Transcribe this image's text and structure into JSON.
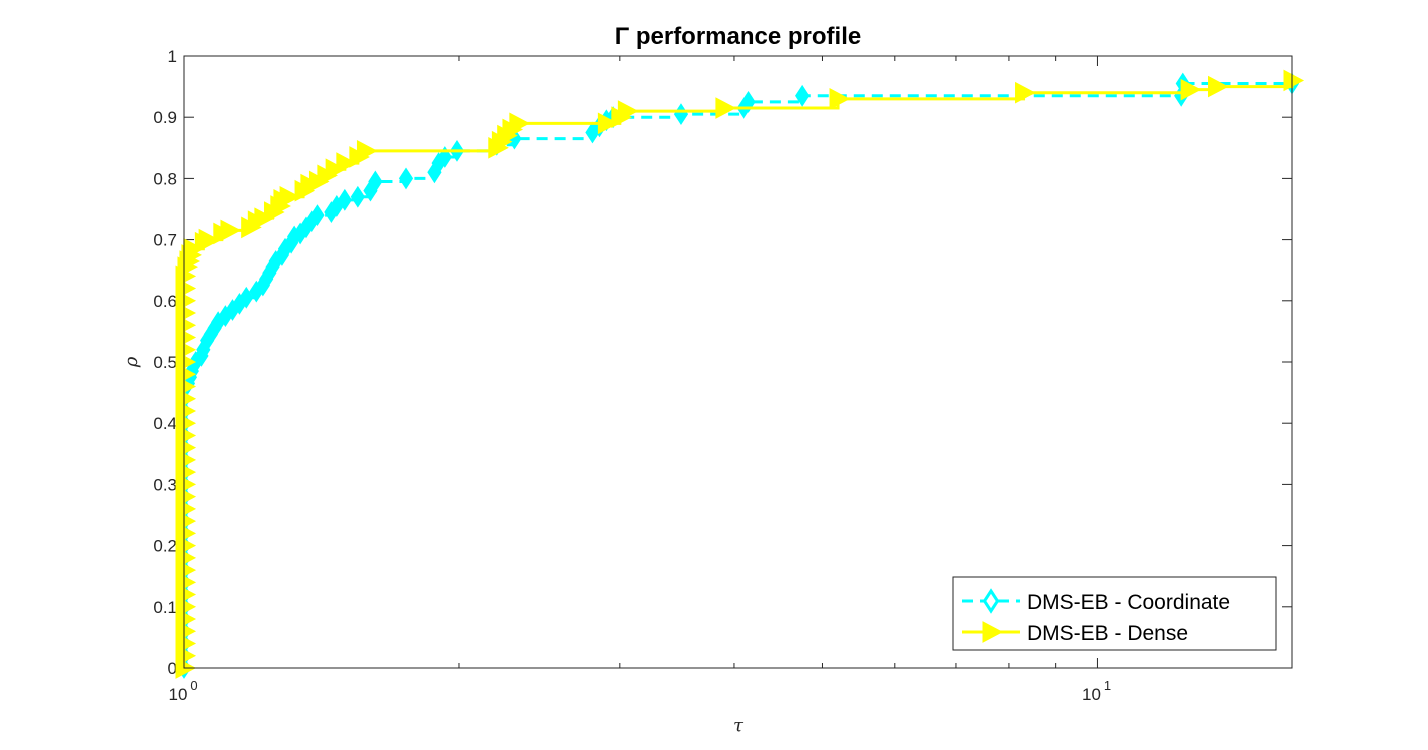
{
  "chart_data": {
    "type": "line",
    "title": "Γ performance profile",
    "xlabel": "τ",
    "ylabel": "ρ",
    "x_scale": "log",
    "xlim": [
      1,
      16.33
    ],
    "ylim": [
      0,
      1
    ],
    "x_ticks": [
      {
        "value": 1,
        "base": "10",
        "exp": "0"
      },
      {
        "value": 10,
        "base": "10",
        "exp": "1"
      }
    ],
    "y_ticks": [
      {
        "value": 0,
        "label": "0"
      },
      {
        "value": 0.1,
        "label": "0.1"
      },
      {
        "value": 0.2,
        "label": "0.2"
      },
      {
        "value": 0.3,
        "label": "0.3"
      },
      {
        "value": 0.4,
        "label": "0.4"
      },
      {
        "value": 0.5,
        "label": "0.5"
      },
      {
        "value": 0.6,
        "label": "0.6"
      },
      {
        "value": 0.7,
        "label": "0.7"
      },
      {
        "value": 0.8,
        "label": "0.8"
      },
      {
        "value": 0.9,
        "label": "0.9"
      },
      {
        "value": 1,
        "label": "1"
      }
    ],
    "grid": false,
    "legend_position": "bottom-right",
    "series": [
      {
        "name": "DMS-EB - Coordinate",
        "color": "#00ffff",
        "line_style": "dashed",
        "marker": "diamond",
        "points": [
          [
            1.0,
            0.0
          ],
          [
            1.0,
            0.02
          ],
          [
            1.0,
            0.04
          ],
          [
            1.0,
            0.06
          ],
          [
            1.0,
            0.08
          ],
          [
            1.0,
            0.1
          ],
          [
            1.0,
            0.12
          ],
          [
            1.0,
            0.14
          ],
          [
            1.0,
            0.16
          ],
          [
            1.0,
            0.18
          ],
          [
            1.0,
            0.2
          ],
          [
            1.0,
            0.22
          ],
          [
            1.0,
            0.24
          ],
          [
            1.0,
            0.26
          ],
          [
            1.0,
            0.28
          ],
          [
            1.0,
            0.3
          ],
          [
            1.0,
            0.32
          ],
          [
            1.0,
            0.34
          ],
          [
            1.0,
            0.36
          ],
          [
            1.0,
            0.38
          ],
          [
            1.0,
            0.4
          ],
          [
            1.0,
            0.42
          ],
          [
            1.0,
            0.44
          ],
          [
            1.0,
            0.46
          ],
          [
            1.01,
            0.465
          ],
          [
            1.015,
            0.475
          ],
          [
            1.02,
            0.485
          ],
          [
            1.025,
            0.495
          ],
          [
            1.03,
            0.5
          ],
          [
            1.045,
            0.51
          ],
          [
            1.05,
            0.52
          ],
          [
            1.06,
            0.535
          ],
          [
            1.07,
            0.545
          ],
          [
            1.08,
            0.555
          ],
          [
            1.09,
            0.565
          ],
          [
            1.11,
            0.575
          ],
          [
            1.13,
            0.585
          ],
          [
            1.15,
            0.595
          ],
          [
            1.17,
            0.605
          ],
          [
            1.2,
            0.615
          ],
          [
            1.22,
            0.625
          ],
          [
            1.23,
            0.635
          ],
          [
            1.24,
            0.645
          ],
          [
            1.25,
            0.655
          ],
          [
            1.26,
            0.665
          ],
          [
            1.28,
            0.675
          ],
          [
            1.29,
            0.685
          ],
          [
            1.31,
            0.695
          ],
          [
            1.32,
            0.705
          ],
          [
            1.34,
            0.71
          ],
          [
            1.36,
            0.72
          ],
          [
            1.38,
            0.73
          ],
          [
            1.4,
            0.74
          ],
          [
            1.45,
            0.745
          ],
          [
            1.47,
            0.755
          ],
          [
            1.5,
            0.765
          ],
          [
            1.55,
            0.77
          ],
          [
            1.6,
            0.78
          ],
          [
            1.62,
            0.795
          ],
          [
            1.75,
            0.8
          ],
          [
            1.88,
            0.81
          ],
          [
            1.9,
            0.825
          ],
          [
            1.93,
            0.835
          ],
          [
            1.99,
            0.845
          ],
          [
            2.2,
            0.855
          ],
          [
            2.3,
            0.865
          ],
          [
            2.8,
            0.875
          ],
          [
            2.85,
            0.885
          ],
          [
            2.9,
            0.895
          ],
          [
            2.95,
            0.9
          ],
          [
            3.5,
            0.905
          ],
          [
            4.1,
            0.915
          ],
          [
            4.15,
            0.925
          ],
          [
            4.75,
            0.935
          ],
          [
            12.35,
            0.935
          ],
          [
            12.4,
            0.955
          ],
          [
            16.33,
            0.955
          ]
        ]
      },
      {
        "name": "DMS-EB - Dense",
        "color": "#ffff00",
        "line_style": "solid",
        "marker": "triangle-right",
        "points": [
          [
            1.0,
            0.0
          ],
          [
            1.0,
            0.02
          ],
          [
            1.0,
            0.04
          ],
          [
            1.0,
            0.06
          ],
          [
            1.0,
            0.08
          ],
          [
            1.0,
            0.1
          ],
          [
            1.0,
            0.12
          ],
          [
            1.0,
            0.14
          ],
          [
            1.0,
            0.16
          ],
          [
            1.0,
            0.18
          ],
          [
            1.0,
            0.2
          ],
          [
            1.0,
            0.22
          ],
          [
            1.0,
            0.24
          ],
          [
            1.0,
            0.26
          ],
          [
            1.0,
            0.28
          ],
          [
            1.0,
            0.3
          ],
          [
            1.0,
            0.32
          ],
          [
            1.0,
            0.34
          ],
          [
            1.0,
            0.36
          ],
          [
            1.0,
            0.38
          ],
          [
            1.0,
            0.4
          ],
          [
            1.0,
            0.42
          ],
          [
            1.0,
            0.44
          ],
          [
            1.0,
            0.46
          ],
          [
            1.0,
            0.48
          ],
          [
            1.0,
            0.5
          ],
          [
            1.0,
            0.52
          ],
          [
            1.0,
            0.54
          ],
          [
            1.0,
            0.56
          ],
          [
            1.0,
            0.58
          ],
          [
            1.0,
            0.6
          ],
          [
            1.0,
            0.62
          ],
          [
            1.0,
            0.64
          ],
          [
            1.005,
            0.655
          ],
          [
            1.01,
            0.665
          ],
          [
            1.015,
            0.675
          ],
          [
            1.02,
            0.685
          ],
          [
            1.05,
            0.695
          ],
          [
            1.06,
            0.7
          ],
          [
            1.1,
            0.71
          ],
          [
            1.12,
            0.715
          ],
          [
            1.18,
            0.72
          ],
          [
            1.2,
            0.73
          ],
          [
            1.22,
            0.735
          ],
          [
            1.25,
            0.745
          ],
          [
            1.27,
            0.755
          ],
          [
            1.28,
            0.765
          ],
          [
            1.3,
            0.77
          ],
          [
            1.35,
            0.78
          ],
          [
            1.37,
            0.79
          ],
          [
            1.4,
            0.795
          ],
          [
            1.43,
            0.805
          ],
          [
            1.46,
            0.815
          ],
          [
            1.5,
            0.825
          ],
          [
            1.55,
            0.835
          ],
          [
            1.58,
            0.845
          ],
          [
            2.2,
            0.85
          ],
          [
            2.22,
            0.86
          ],
          [
            2.25,
            0.87
          ],
          [
            2.28,
            0.88
          ],
          [
            2.32,
            0.89
          ],
          [
            2.9,
            0.89
          ],
          [
            3.0,
            0.9
          ],
          [
            3.05,
            0.91
          ],
          [
            3.9,
            0.915
          ],
          [
            5.2,
            0.93
          ],
          [
            8.3,
            0.94
          ],
          [
            12.6,
            0.945
          ],
          [
            13.5,
            0.95
          ],
          [
            16.33,
            0.96
          ]
        ]
      }
    ]
  }
}
